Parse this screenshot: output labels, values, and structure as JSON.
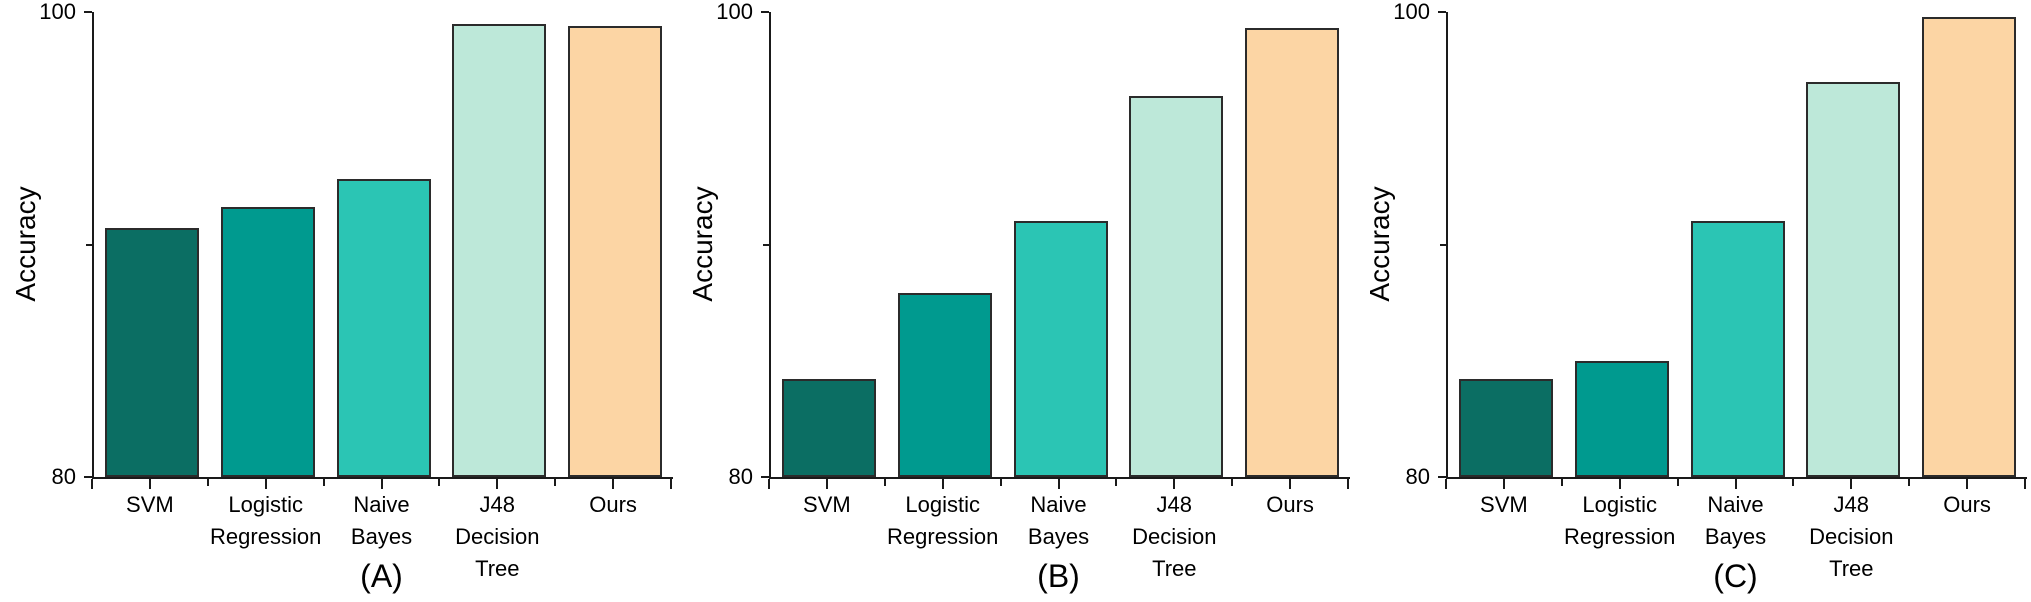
{
  "figure": {
    "background": "#ffffff",
    "axis_color": "#1a1a1a",
    "bar_edge_color": "#2b2b2b",
    "text_color": "#000000"
  },
  "chart_data": [
    {
      "type": "bar",
      "panel_label": "(A)",
      "ylabel": "Accuracy",
      "ylim": [
        80,
        100
      ],
      "grid": false,
      "legend": "none",
      "yticks": [
        {
          "value": 80,
          "label": "80"
        },
        {
          "value": 90,
          "label": ""
        },
        {
          "value": 100,
          "label": "100"
        }
      ],
      "categories": [
        "SVM",
        "Logistic\nRegression",
        "Naive\nBayes",
        "J48\nDecision\nTree",
        "Ours"
      ],
      "series_colors": [
        "#0b6e63",
        "#009a8f",
        "#2bc5b4",
        "#bde8d9",
        "#fcd5a4"
      ],
      "values": [
        90.7,
        91.6,
        92.8,
        99.5,
        99.4
      ]
    },
    {
      "type": "bar",
      "panel_label": "(B)",
      "ylabel": "Accuracy",
      "ylim": [
        80,
        100
      ],
      "grid": false,
      "legend": "none",
      "yticks": [
        {
          "value": 80,
          "label": "80"
        },
        {
          "value": 90,
          "label": ""
        },
        {
          "value": 100,
          "label": "100"
        }
      ],
      "categories": [
        "SVM",
        "Logistic\nRegression",
        "Naive\nBayes",
        "J48\nDecision\nTree",
        "Ours"
      ],
      "series_colors": [
        "#0b6e63",
        "#009a8f",
        "#2bc5b4",
        "#bde8d9",
        "#fcd5a4"
      ],
      "values": [
        84.2,
        87.9,
        91.0,
        96.4,
        99.3
      ]
    },
    {
      "type": "bar",
      "panel_label": "(C)",
      "ylabel": "Accuracy",
      "ylim": [
        80,
        100
      ],
      "grid": false,
      "legend": "none",
      "yticks": [
        {
          "value": 80,
          "label": "80"
        },
        {
          "value": 90,
          "label": ""
        },
        {
          "value": 100,
          "label": "100"
        }
      ],
      "categories": [
        "SVM",
        "Logistic\nRegression",
        "Naive\nBayes",
        "J48\nDecision\nTree",
        "Ours"
      ],
      "series_colors": [
        "#0b6e63",
        "#009a8f",
        "#2bc5b4",
        "#bde8d9",
        "#fcd5a4"
      ],
      "values": [
        84.2,
        85.0,
        91.0,
        97.0,
        99.8
      ]
    }
  ]
}
